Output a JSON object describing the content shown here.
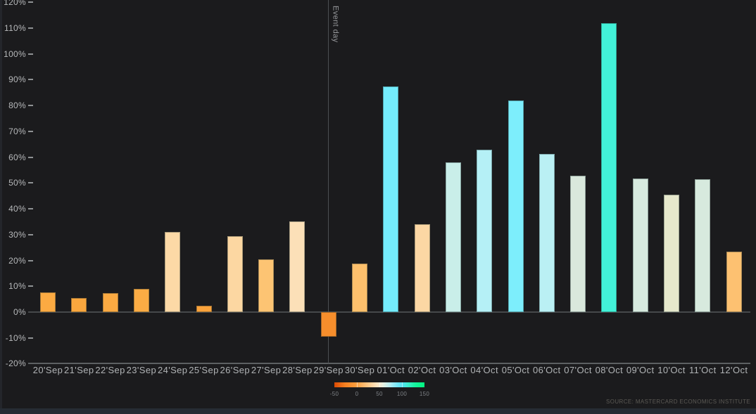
{
  "page": {
    "background": "#1b1b1d",
    "bottom_strip_color": "#262c34"
  },
  "chart_data": {
    "type": "bar",
    "title": "",
    "xlabel": "",
    "ylabel": "",
    "ylim": [
      -20,
      120
    ],
    "y_tick_step": 10,
    "y_tick_labels": [
      "-20%",
      "-10%",
      "0%",
      "10%",
      "20%",
      "30%",
      "40%",
      "50%",
      "60%",
      "70%",
      "80%",
      "90%",
      "100%",
      "110%",
      "120%"
    ],
    "grid": false,
    "categories": [
      "20'Sep",
      "21'Sep",
      "22'Sep",
      "23'Sep",
      "24'Sep",
      "25'Sep",
      "26'Sep",
      "27'Sep",
      "28'Sep",
      "29'Sep",
      "30'Sep",
      "01'Oct",
      "02'Oct",
      "03'Oct",
      "04'Oct",
      "05'Oct",
      "06'Oct",
      "07'Oct",
      "08'Oct",
      "09'Oct",
      "10'Oct",
      "11'Oct",
      "12'Oct"
    ],
    "values": [
      7.7,
      5.4,
      7.4,
      9.0,
      31.0,
      2.5,
      29.5,
      20.3,
      35.2,
      -9.5,
      18.8,
      87.5,
      34.1,
      57.9,
      62.8,
      82.0,
      61.2,
      52.7,
      112.0,
      51.7,
      45.4,
      51.5,
      23.3
    ],
    "bar_colors": [
      "#fbaa42",
      "#faa73e",
      "#fbaa42",
      "#fbac44",
      "#fcd9a6",
      "#faa33c",
      "#fcd7a2",
      "#fdc473",
      "#fce0b8",
      "#f68e2c",
      "#fdc06c",
      "#74ecfc",
      "#fcd7a4",
      "#c9eee9",
      "#b5f0f6",
      "#7deefc",
      "#baf0f4",
      "#d9e8dc",
      "#42f2d8",
      "#d7eadf",
      "#e6e8cc",
      "#d7eade",
      "#fdc171"
    ],
    "event_line": {
      "label": "Event day",
      "category": "29'Sep",
      "category_index": 9
    },
    "legend": {
      "type": "gradient-colorbar",
      "range": [
        -50,
        150
      ],
      "tick_labels": [
        "-50",
        "0",
        "50",
        "100",
        "150"
      ],
      "tick_positions_pct": [
        0,
        25,
        50,
        75,
        100
      ],
      "gradient_stops": [
        {
          "pos": 0,
          "color": "#dc4a04"
        },
        {
          "pos": 12,
          "color": "#f58121"
        },
        {
          "pos": 24,
          "color": "#fb9d3d"
        },
        {
          "pos": 36,
          "color": "#fdc480"
        },
        {
          "pos": 48,
          "color": "#fee7c6"
        },
        {
          "pos": 54,
          "color": "#e8f0e2"
        },
        {
          "pos": 62,
          "color": "#b4eef4"
        },
        {
          "pos": 70,
          "color": "#74e7f8"
        },
        {
          "pos": 76,
          "color": "#52e3ef"
        },
        {
          "pos": 81,
          "color": "#40edd0"
        },
        {
          "pos": 90,
          "color": "#14f49c"
        },
        {
          "pos": 100,
          "color": "#03f47f"
        }
      ]
    },
    "source": "SOURCE: MASTERCARD ECONOMICS INSTITUTE"
  }
}
